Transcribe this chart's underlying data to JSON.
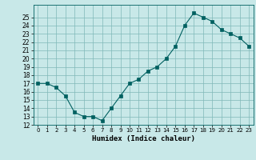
{
  "x": [
    0,
    1,
    2,
    3,
    4,
    5,
    6,
    7,
    8,
    9,
    10,
    11,
    12,
    13,
    14,
    15,
    16,
    17,
    18,
    19,
    20,
    21,
    22,
    23
  ],
  "y": [
    17,
    17,
    16.5,
    15.5,
    13.5,
    13,
    13,
    12.5,
    14,
    15.5,
    17,
    17.5,
    18.5,
    19,
    20,
    21.5,
    24,
    25.5,
    25,
    24.5,
    23.5,
    23,
    22.5,
    21.5
  ],
  "line_color": "#006060",
  "marker_color": "#006060",
  "bg_color": "#c8e8e8",
  "grid_color": "#80b8b8",
  "xlabel": "Humidex (Indice chaleur)",
  "ylim": [
    12,
    26
  ],
  "xlim": [
    -0.5,
    23.5
  ],
  "yticks": [
    12,
    13,
    14,
    15,
    16,
    17,
    18,
    19,
    20,
    21,
    22,
    23,
    24,
    25
  ],
  "xtick_labels": [
    "0",
    "1",
    "2",
    "3",
    "4",
    "5",
    "6",
    "7",
    "8",
    "9",
    "10",
    "11",
    "12",
    "13",
    "14",
    "15",
    "16",
    "17",
    "18",
    "19",
    "20",
    "21",
    "22",
    "23"
  ]
}
